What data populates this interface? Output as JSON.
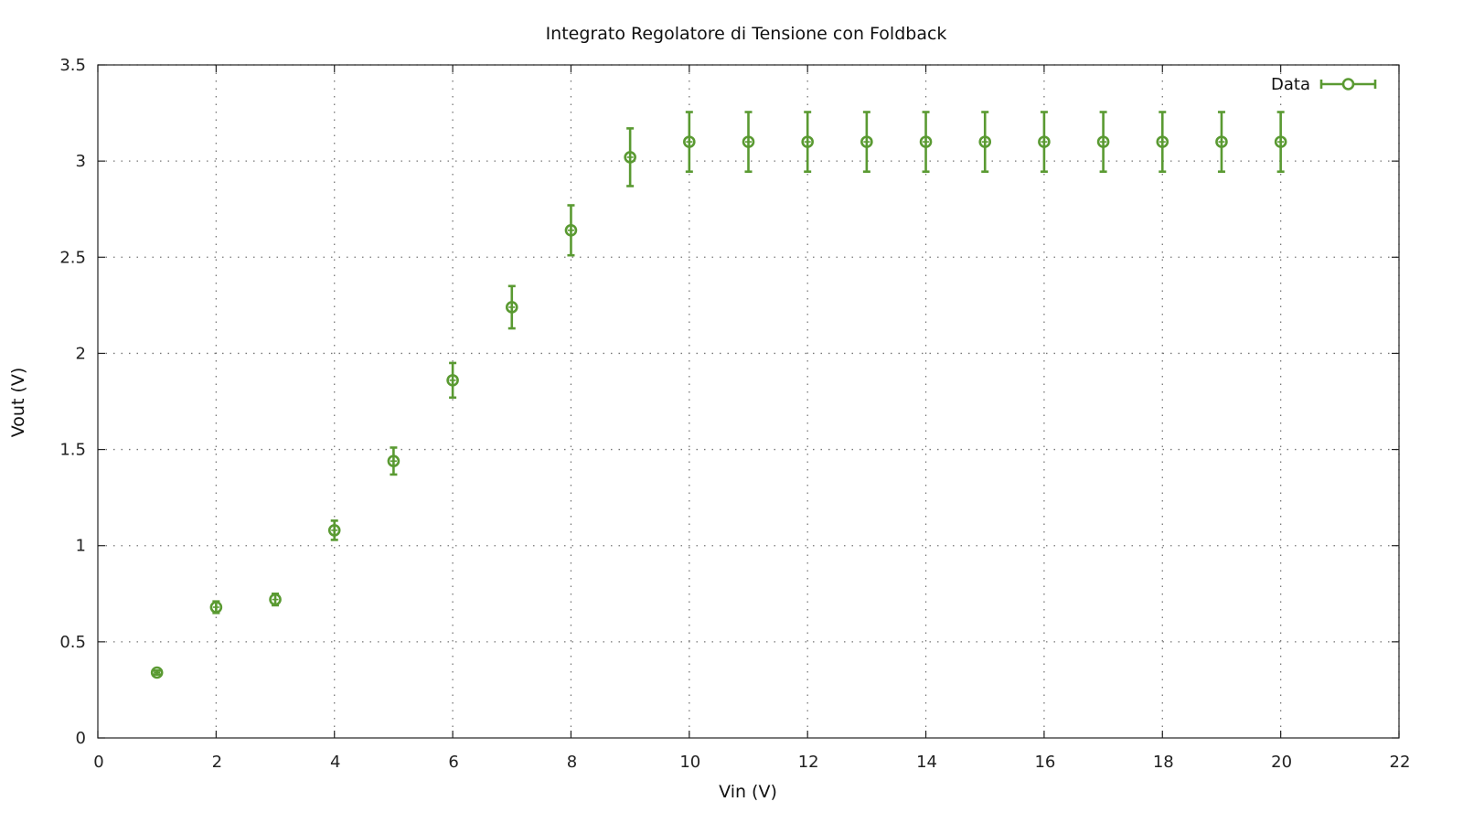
{
  "chart_data": {
    "type": "scatter",
    "title": "Integrato Regolatore di Tensione con Foldback",
    "xlabel": "Vin (V)",
    "ylabel": "Vout (V)",
    "xlim": [
      0,
      22
    ],
    "ylim": [
      0,
      3.5
    ],
    "xticks": [
      0,
      2,
      4,
      6,
      8,
      10,
      12,
      14,
      16,
      18,
      20,
      22
    ],
    "xtick_labels": [
      "0",
      "2",
      "4",
      "6",
      "8",
      "10",
      "12",
      "14",
      "16",
      "18",
      "20",
      "22"
    ],
    "yticks": [
      0,
      0.5,
      1,
      1.5,
      2,
      2.5,
      3,
      3.5
    ],
    "ytick_labels": [
      "0",
      "0.5",
      "1",
      "1.5",
      "2",
      "2.5",
      "3",
      "3.5"
    ],
    "grid": true,
    "legend_position": "top-right",
    "series": [
      {
        "name": "Data",
        "color": "#5a9a32",
        "marker": "circle-with-errorbars",
        "x": [
          1,
          2,
          3,
          4,
          5,
          6,
          7,
          8,
          9,
          10,
          11,
          12,
          13,
          14,
          15,
          16,
          17,
          18,
          19,
          20
        ],
        "y": [
          0.34,
          0.68,
          0.72,
          1.08,
          1.44,
          1.86,
          2.24,
          2.64,
          3.02,
          3.1,
          3.1,
          3.1,
          3.1,
          3.1,
          3.1,
          3.1,
          3.1,
          3.1,
          3.1,
          3.1
        ],
        "err": [
          0.01,
          0.03,
          0.03,
          0.05,
          0.07,
          0.09,
          0.11,
          0.13,
          0.15,
          0.155,
          0.155,
          0.155,
          0.155,
          0.155,
          0.155,
          0.155,
          0.155,
          0.155,
          0.155,
          0.155
        ]
      }
    ]
  }
}
